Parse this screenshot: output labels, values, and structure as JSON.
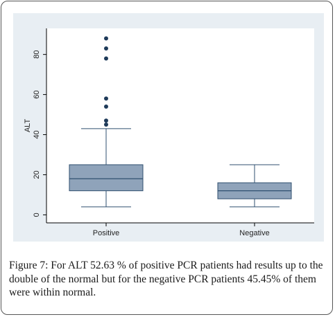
{
  "chart_data": {
    "type": "box",
    "ylabel": "ALT",
    "xlabel": "",
    "ylim": [
      -4,
      93
    ],
    "yticks": [
      0,
      20,
      40,
      60,
      80
    ],
    "categories": [
      "Positive",
      "Negative"
    ],
    "boxes": [
      {
        "category": "Positive",
        "whisker_low": 4,
        "q1": 12,
        "median": 18,
        "q3": 25,
        "whisker_high": 43,
        "outliers": [
          45,
          47,
          54,
          58,
          78,
          83,
          88
        ]
      },
      {
        "category": "Negative",
        "whisker_low": 4,
        "q1": 8,
        "median": 12,
        "q3": 16,
        "whisker_high": 25,
        "outliers": []
      }
    ],
    "colors": {
      "box_fill": "#8fa3ba",
      "box_stroke": "#2f4f6f",
      "outlier": "#1f3b5a",
      "plot_bg": "#e8eef3",
      "inner_bg": "#ffffff"
    }
  },
  "caption": {
    "label": "Figure 7:",
    "text": " For ALT 52.63 % of positive PCR patients had results up to the double of the normal but for the negative PCR patients 45.45% of them were within normal."
  }
}
